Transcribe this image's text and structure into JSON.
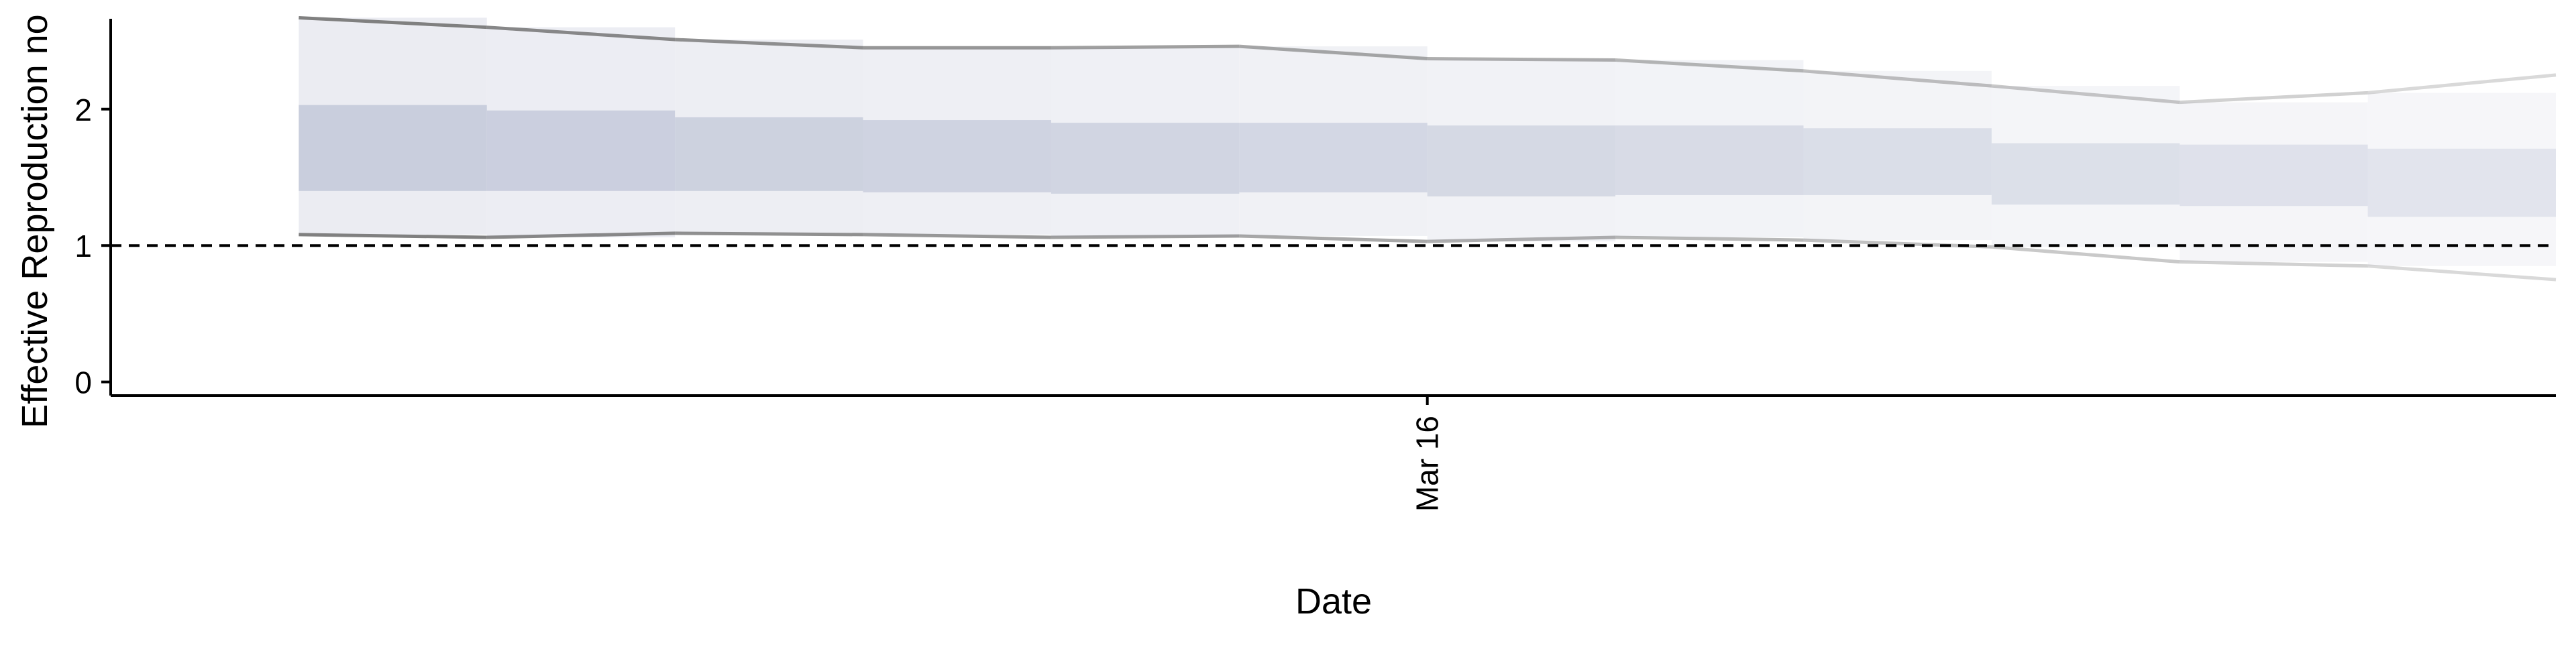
{
  "chart_data": {
    "type": "area",
    "xlabel": "Date",
    "ylabel": "Effective Reproduction no",
    "x_ticks": [
      {
        "date": "2020-03-16",
        "label": "Mar 16"
      }
    ],
    "y_ticks": [
      {
        "value": 0,
        "label": "0"
      },
      {
        "value": 1,
        "label": "1"
      },
      {
        "value": 2,
        "label": "2"
      }
    ],
    "ylim": [
      -0.1,
      2.8
    ],
    "xlim": [
      "2020-03-09",
      "2020-03-22"
    ],
    "reference_line": {
      "y": 1,
      "style": "dashed"
    },
    "grid": false,
    "x": [
      "2020-03-10",
      "2020-03-11",
      "2020-03-12",
      "2020-03-13",
      "2020-03-14",
      "2020-03-15",
      "2020-03-16",
      "2020-03-17",
      "2020-03-18",
      "2020-03-19",
      "2020-03-20",
      "2020-03-21",
      "2020-03-22"
    ],
    "interval_90": {
      "lower": [
        1.08,
        1.06,
        1.09,
        1.08,
        1.06,
        1.07,
        1.03,
        1.06,
        1.04,
        0.99,
        0.88,
        0.85,
        0.75
      ],
      "upper": [
        2.67,
        2.6,
        2.51,
        2.45,
        2.45,
        2.46,
        2.37,
        2.36,
        2.28,
        2.17,
        2.05,
        2.12,
        2.25
      ]
    },
    "interval_50": {
      "lower": [
        1.4,
        1.4,
        1.4,
        1.39,
        1.38,
        1.39,
        1.36,
        1.37,
        1.37,
        1.3,
        1.29,
        1.21,
        1.19
      ],
      "upper": [
        2.03,
        1.99,
        1.94,
        1.92,
        1.9,
        1.9,
        1.88,
        1.88,
        1.86,
        1.75,
        1.74,
        1.71,
        1.74
      ]
    },
    "colors": {
      "band_inner": "#c9cedd",
      "band_outer": "#ebecf2",
      "bound_line": "#808080",
      "axis": "#000000"
    }
  }
}
